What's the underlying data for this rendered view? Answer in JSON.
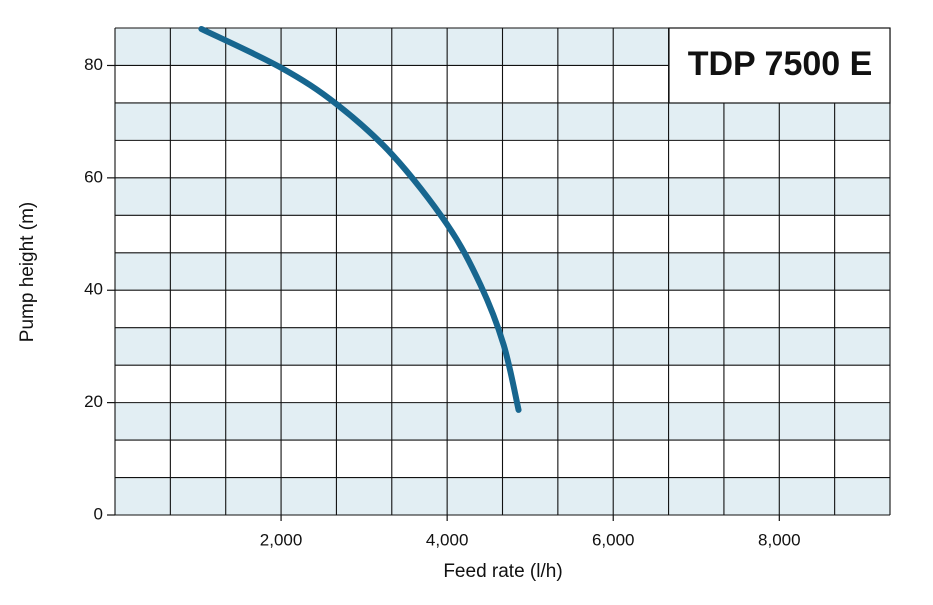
{
  "chart_data": {
    "type": "line",
    "title": "TDP 7500 E",
    "x_label": "Feed rate (l/h)",
    "y_label": "Pump height (m)",
    "xlim": [
      0,
      9333
    ],
    "ylim": [
      0,
      86.67
    ],
    "xticks": [
      {
        "value": 2000,
        "label": "2,000"
      },
      {
        "value": 4000,
        "label": "4,000"
      },
      {
        "value": 6000,
        "label": "6,000"
      },
      {
        "value": 8000,
        "label": "8,000"
      }
    ],
    "yticks": [
      0,
      20,
      40,
      60,
      80
    ],
    "grid": true,
    "series": [
      {
        "color": "#17668f",
        "x": [
          1040,
          2000,
          2670,
          3340,
          4000,
          4400,
          4680,
          4860
        ],
        "values": [
          86.5,
          79.6,
          73.1,
          64.1,
          51.7,
          41.0,
          30.3,
          18.7
        ]
      }
    ]
  }
}
